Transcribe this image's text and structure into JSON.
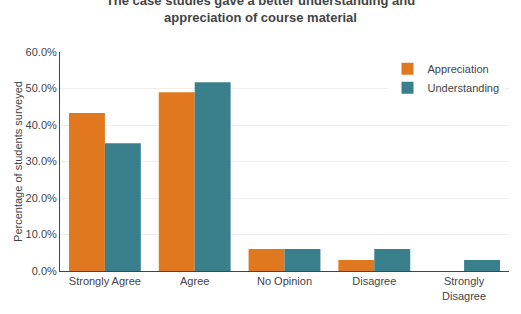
{
  "chart_data": {
    "type": "bar",
    "title": "The case studies gave a better understanding and\nappreciation of course material",
    "categories": [
      "Strongly Agree",
      "Agree",
      "No Opinion",
      "Disagree",
      "Strongly\nDisagree"
    ],
    "series": [
      {
        "name": "Appreciation",
        "color": "#E07820",
        "values": [
          0.433,
          0.49,
          0.06,
          0.03,
          0.0
        ]
      },
      {
        "name": "Understanding",
        "color": "#3A7F8C",
        "values": [
          0.35,
          0.517,
          0.06,
          0.06,
          0.03
        ]
      }
    ],
    "ylabel": "Percentage of students surveyed",
    "ylim": [
      0,
      0.6
    ],
    "yticks": [
      {
        "value": 0.0,
        "label": "0.0%"
      },
      {
        "value": 0.1,
        "label": "10.0%"
      },
      {
        "value": 0.2,
        "label": "20.0%"
      },
      {
        "value": 0.3,
        "label": "30.0%"
      },
      {
        "value": 0.4,
        "label": "40.0%"
      },
      {
        "value": 0.5,
        "label": "50.0%"
      },
      {
        "value": 0.6,
        "label": "60.0%"
      }
    ],
    "grid": true,
    "legend": "upper right"
  }
}
